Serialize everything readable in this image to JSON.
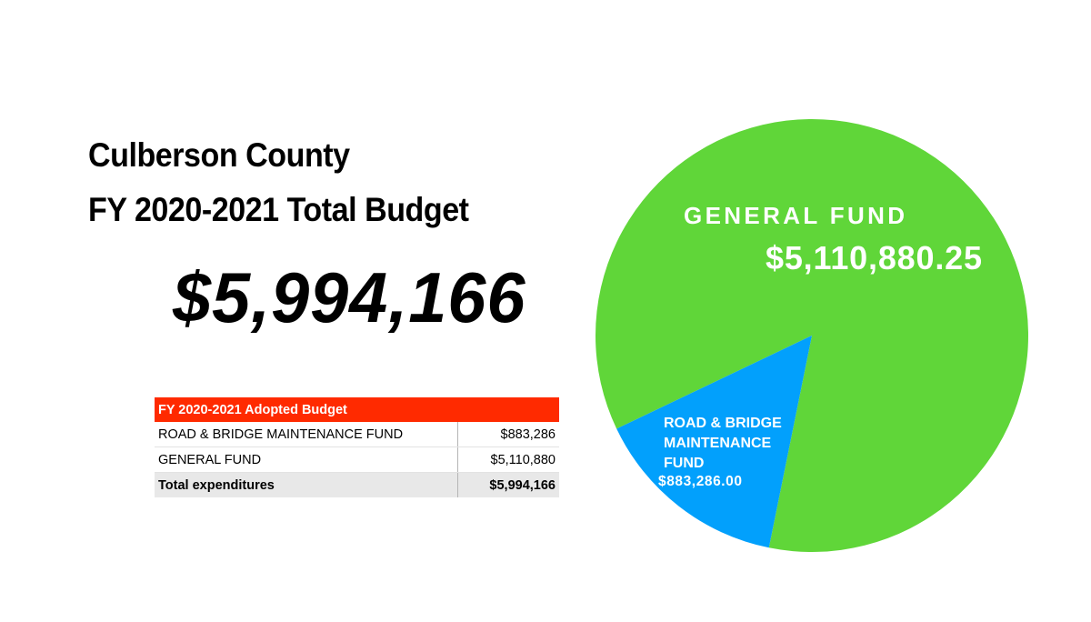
{
  "header": {
    "line1": "Culberson County",
    "line2": "FY 2020-2021 Total Budget",
    "total": "$5,994,166"
  },
  "table": {
    "title": "FY 2020-2021 Adopted Budget",
    "rows": [
      {
        "label": "ROAD & BRIDGE MAINTENANCE FUND",
        "value": "$883,286"
      },
      {
        "label": "GENERAL FUND",
        "value": "$5,110,880"
      }
    ],
    "total": {
      "label": "Total expenditures",
      "value": "$5,994,166"
    }
  },
  "chart_data": {
    "type": "pie",
    "title": "",
    "slices": [
      {
        "name": "GENERAL FUND",
        "label_lines": [
          "GENERAL FUND"
        ],
        "value": 5110880.25,
        "value_label": "$5,110,880.25",
        "color": "#60d639"
      },
      {
        "name": "ROAD & BRIDGE MAINTENANCE FUND",
        "label_lines": [
          "ROAD & BRIDGE",
          "MAINTENANCE",
          "FUND"
        ],
        "value": 883286.0,
        "value_label": "$883,286.00",
        "color": "#02a0fc"
      }
    ],
    "legend": "none"
  }
}
